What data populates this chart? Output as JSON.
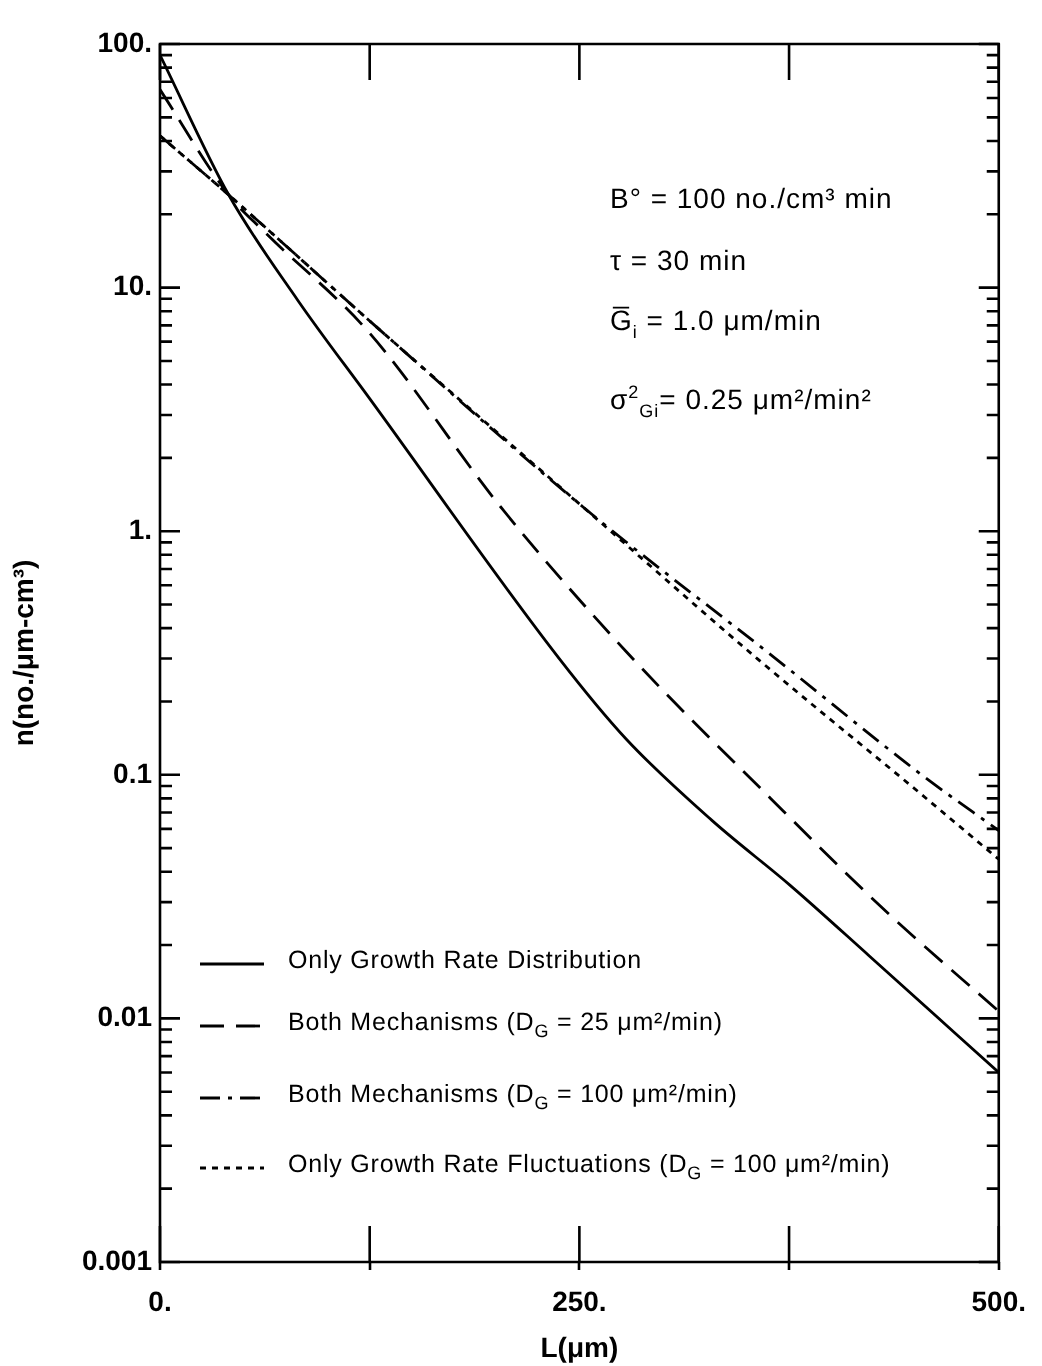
{
  "chart_data": {
    "type": "line",
    "xlabel": "L(μm)",
    "ylabel": "n(no./μm-cm³)",
    "log": "y",
    "grid": false,
    "legend": "bottom left",
    "marker": "none",
    "xlim": [
      0,
      500
    ],
    "xticks": [
      {
        "value": 0,
        "label": "0."
      },
      {
        "value": 125,
        "label": null
      },
      {
        "value": 250,
        "label": "250."
      },
      {
        "value": 375,
        "label": null
      },
      {
        "value": 500,
        "label": "500."
      }
    ],
    "ylim": [
      0.001,
      100
    ],
    "yticks": [
      0.001,
      {
        "value": 0.002,
        "label": null
      },
      {
        "value": 0.003,
        "label": null
      },
      {
        "value": 0.004,
        "label": null
      },
      {
        "value": 0.005,
        "label": null
      },
      {
        "value": 0.006,
        "label": null
      },
      {
        "value": 0.007,
        "label": null
      },
      {
        "value": 0.008,
        "label": null
      },
      {
        "value": 0.009,
        "label": null
      },
      0.01,
      {
        "value": 0.02,
        "label": null
      },
      {
        "value": 0.03,
        "label": null
      },
      {
        "value": 0.04,
        "label": null
      },
      {
        "value": 0.05,
        "label": null
      },
      {
        "value": 0.06,
        "label": null
      },
      {
        "value": 0.07,
        "label": null
      },
      {
        "value": 0.08,
        "label": null
      },
      {
        "value": 0.09,
        "label": null
      },
      0.1,
      {
        "value": 0.2,
        "label": null
      },
      {
        "value": 0.3,
        "label": null
      },
      {
        "value": 0.4,
        "label": null
      },
      {
        "value": 0.5,
        "label": null
      },
      {
        "value": 0.6,
        "label": null
      },
      {
        "value": 0.7,
        "label": null
      },
      {
        "value": 0.8,
        "label": null
      },
      {
        "value": 0.9,
        "label": null
      },
      {
        "value": 1,
        "label": "1."
      },
      {
        "value": 2,
        "label": null
      },
      {
        "value": 3,
        "label": null
      },
      {
        "value": 4,
        "label": null
      },
      {
        "value": 5,
        "label": null
      },
      {
        "value": 6,
        "label": null
      },
      {
        "value": 7,
        "label": null
      },
      {
        "value": 8,
        "label": null
      },
      {
        "value": 9,
        "label": null
      },
      {
        "value": 10,
        "label": "10."
      },
      {
        "value": 20,
        "label": null
      },
      {
        "value": 30,
        "label": null
      },
      {
        "value": 40,
        "label": null
      },
      {
        "value": 50,
        "label": null
      },
      {
        "value": 60,
        "label": null
      },
      {
        "value": 70,
        "label": null
      },
      {
        "value": 80,
        "label": null
      },
      {
        "value": 90,
        "label": null
      },
      {
        "value": 100,
        "label": "100."
      }
    ],
    "series": [
      {
        "name": "Only Growth Rate Distribution",
        "color": "#000000",
        "line_style": "solid",
        "x": [
          0,
          41,
          82,
          125,
          238,
          278,
          329,
          376,
          423,
          500
        ],
        "values": [
          90,
          24,
          8.9,
          3.5,
          0.3,
          0.14,
          0.065,
          0.035,
          0.018,
          0.006
        ]
      },
      {
        "name": "Both Mechanisms (D$_{G}$ = 25 μm²/min)",
        "color": "#000000",
        "line_style": "dashed",
        "x": [
          0,
          41,
          62,
          125,
          203,
          278,
          364,
          434,
          500
        ],
        "values": [
          65,
          24,
          17,
          6.5,
          1.26,
          0.32,
          0.08,
          0.027,
          0.0107
        ]
      },
      {
        "name": "Both Mechanisms (D$_{G}$ = 100 μm²/min)",
        "color": "#000000",
        "line_style": "dashdot",
        "x": [
          0,
          41,
          129,
          252,
          367,
          454,
          500
        ],
        "values": [
          42,
          24,
          6.9,
          1.26,
          0.3,
          0.1,
          0.059
        ]
      },
      {
        "name": "Only Growth Rate Fluctuations (D$_{G}$ = 100 μm²/min)",
        "color": "#000000",
        "line_style": "dotted",
        "x": [
          0,
          41,
          129,
          252,
          356,
          454,
          500
        ],
        "values": [
          42,
          24,
          6.9,
          1.26,
          0.3,
          0.083,
          0.045
        ]
      }
    ],
    "annotations": [
      "B° = 100 no./cm³  min",
      "τ = 30 min",
      "G̅$_{i}$ = 1.0 μm/min",
      "σ$^{2}$$_{Gi}$= 0.25 μm²/min²"
    ]
  }
}
